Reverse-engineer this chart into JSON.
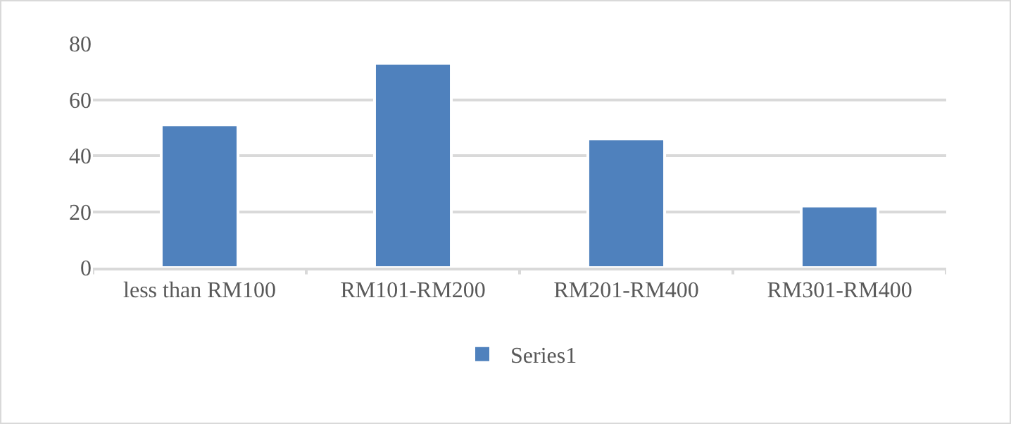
{
  "chart_data": {
    "type": "bar",
    "categories": [
      "less than RM100",
      "RM101-RM200",
      "RM201-RM400",
      "RM301-RM400"
    ],
    "series": [
      {
        "name": "Series1",
        "color": "#4f81bd",
        "values": [
          51,
          73,
          46,
          22
        ]
      }
    ],
    "ylim": [
      0,
      80
    ],
    "yticks": [
      0,
      20,
      40,
      60,
      80
    ],
    "grid": "y",
    "legend": "bottom"
  }
}
